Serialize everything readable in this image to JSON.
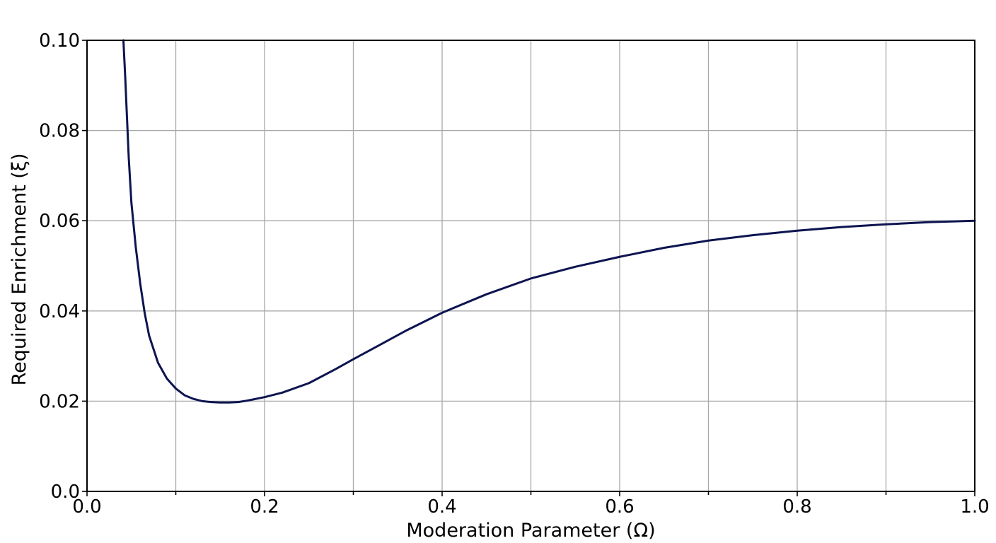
{
  "chart_data": {
    "type": "line",
    "title": "",
    "xlabel": "Moderation Parameter (Ω)",
    "ylabel": "Required Enrichment (ξ)",
    "xlim": [
      0.0,
      1.0
    ],
    "ylim": [
      0.0,
      0.1
    ],
    "grid": true,
    "legend": "none",
    "x_ticks": [
      {
        "value": 0.0,
        "label": "0.0"
      },
      {
        "value": 0.2,
        "label": "0.2"
      },
      {
        "value": 0.4,
        "label": "0.4"
      },
      {
        "value": 0.6,
        "label": "0.6"
      },
      {
        "value": 0.8,
        "label": "0.8"
      },
      {
        "value": 1.0,
        "label": "1.0"
      }
    ],
    "x_minor_ticks": [
      0.1,
      0.3,
      0.5,
      0.7,
      0.9
    ],
    "y_ticks": [
      {
        "value": 0.0,
        "label": "0.0"
      },
      {
        "value": 0.02,
        "label": "0.02"
      },
      {
        "value": 0.04,
        "label": "0.04"
      },
      {
        "value": 0.06,
        "label": "0.06"
      },
      {
        "value": 0.08,
        "label": "0.08"
      },
      {
        "value": 0.1,
        "label": "0.10"
      }
    ],
    "series": [
      {
        "color": "#0d1450",
        "points": [
          [
            0.041,
            0.1
          ],
          [
            0.043,
            0.092
          ],
          [
            0.045,
            0.083
          ],
          [
            0.047,
            0.074
          ],
          [
            0.05,
            0.064
          ],
          [
            0.055,
            0.054
          ],
          [
            0.06,
            0.046
          ],
          [
            0.065,
            0.0395
          ],
          [
            0.07,
            0.0345
          ],
          [
            0.08,
            0.0285
          ],
          [
            0.09,
            0.025
          ],
          [
            0.1,
            0.0228
          ],
          [
            0.11,
            0.0213
          ],
          [
            0.12,
            0.0205
          ],
          [
            0.13,
            0.02
          ],
          [
            0.14,
            0.0198
          ],
          [
            0.15,
            0.0197
          ],
          [
            0.16,
            0.0197
          ],
          [
            0.17,
            0.0198
          ],
          [
            0.18,
            0.0201
          ],
          [
            0.2,
            0.0209
          ],
          [
            0.22,
            0.0219
          ],
          [
            0.25,
            0.024
          ],
          [
            0.28,
            0.0271
          ],
          [
            0.3,
            0.0293
          ],
          [
            0.33,
            0.0325
          ],
          [
            0.36,
            0.0357
          ],
          [
            0.4,
            0.0396
          ],
          [
            0.45,
            0.0437
          ],
          [
            0.5,
            0.0472
          ],
          [
            0.55,
            0.0498
          ],
          [
            0.6,
            0.052
          ],
          [
            0.65,
            0.054
          ],
          [
            0.7,
            0.0556
          ],
          [
            0.75,
            0.0568
          ],
          [
            0.8,
            0.0578
          ],
          [
            0.85,
            0.0586
          ],
          [
            0.9,
            0.0592
          ],
          [
            0.95,
            0.0597
          ],
          [
            1.0,
            0.06
          ]
        ]
      }
    ]
  }
}
